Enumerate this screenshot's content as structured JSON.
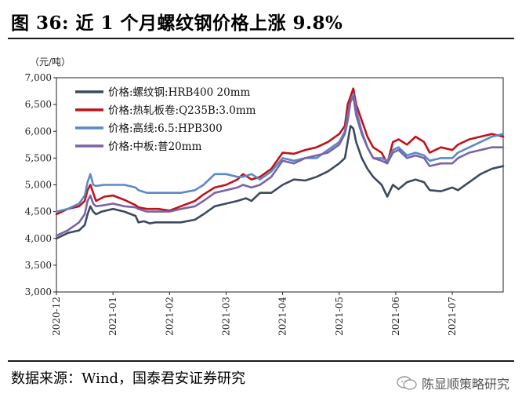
{
  "header": {
    "title": "图 36:  近 1 个月螺纹钢价格上涨 9.8%"
  },
  "footer": {
    "source": "数据来源：Wind，国泰君安证券研究",
    "watermark": "陈显顺策略研究"
  },
  "chart_data": {
    "type": "line",
    "title": "近 1 个月螺纹钢价格上涨 9.8%",
    "ylabel": "（元/吨）",
    "xlabel": "",
    "ylim": [
      3000,
      7000
    ],
    "yticks": [
      3000,
      3500,
      4000,
      4500,
      5000,
      5500,
      6000,
      6500,
      7000
    ],
    "ytick_labels": [
      "3,000",
      "3,500",
      "4,000",
      "4,500",
      "5,000",
      "5,500",
      "6,000",
      "6,500",
      "7,000"
    ],
    "x_range": [
      0,
      7.9
    ],
    "x_ticks": [
      0,
      1,
      2,
      3,
      4,
      5,
      6,
      7
    ],
    "x_tick_labels": [
      "2020-12",
      "2021-01",
      "2021-02",
      "2021-03",
      "2021-04",
      "2021-05",
      "2021-06",
      "2021-07"
    ],
    "legend_position": "top-left",
    "series": [
      {
        "name": "价格:螺纹钢:HRB400 20mm",
        "color": "#3d4a5e",
        "x": [
          0,
          0.2,
          0.4,
          0.5,
          0.55,
          0.6,
          0.65,
          0.7,
          0.8,
          1.0,
          1.2,
          1.4,
          1.45,
          1.55,
          1.65,
          1.75,
          1.9,
          2.2,
          2.45,
          2.6,
          2.8,
          3.0,
          3.2,
          3.35,
          3.45,
          3.6,
          3.8,
          4.0,
          4.2,
          4.4,
          4.6,
          4.8,
          5.0,
          5.1,
          5.15,
          5.2,
          5.25,
          5.3,
          5.4,
          5.5,
          5.6,
          5.75,
          5.85,
          5.95,
          6.05,
          6.2,
          6.35,
          6.5,
          6.6,
          6.8,
          7.0,
          7.1,
          7.3,
          7.5,
          7.7,
          7.9
        ],
        "values": [
          4000,
          4100,
          4150,
          4250,
          4450,
          4600,
          4500,
          4450,
          4500,
          4550,
          4500,
          4420,
          4300,
          4320,
          4280,
          4300,
          4300,
          4300,
          4350,
          4450,
          4600,
          4650,
          4700,
          4750,
          4700,
          4850,
          4850,
          5000,
          5100,
          5080,
          5150,
          5250,
          5400,
          5500,
          5800,
          6100,
          6050,
          5800,
          5500,
          5300,
          5150,
          5000,
          4780,
          5000,
          4920,
          5050,
          5100,
          5050,
          4900,
          4880,
          4950,
          4900,
          5050,
          5200,
          5300,
          5350
        ]
      },
      {
        "name": "价格:热轧板卷:Q235B:3.0mm",
        "color": "#c0121a",
        "x": [
          0,
          0.2,
          0.4,
          0.5,
          0.55,
          0.6,
          0.65,
          0.7,
          0.85,
          1.0,
          1.2,
          1.4,
          1.45,
          1.6,
          1.8,
          2.0,
          2.2,
          2.45,
          2.6,
          2.8,
          3.0,
          3.2,
          3.3,
          3.45,
          3.6,
          3.8,
          4.0,
          4.2,
          4.4,
          4.6,
          4.8,
          5.0,
          5.1,
          5.15,
          5.2,
          5.25,
          5.3,
          5.4,
          5.5,
          5.6,
          5.75,
          5.85,
          5.95,
          6.05,
          6.2,
          6.35,
          6.5,
          6.6,
          6.8,
          7.0,
          7.1,
          7.3,
          7.5,
          7.7,
          7.9
        ],
        "values": [
          4450,
          4550,
          4600,
          4700,
          4900,
          5000,
          4850,
          4700,
          4780,
          4800,
          4720,
          4620,
          4580,
          4550,
          4550,
          4520,
          4600,
          4700,
          4820,
          4950,
          5000,
          5100,
          5200,
          5100,
          5150,
          5300,
          5600,
          5580,
          5650,
          5700,
          5800,
          5950,
          6100,
          6500,
          6650,
          6800,
          6500,
          6200,
          5900,
          5700,
          5600,
          5400,
          5800,
          5850,
          5750,
          5900,
          5800,
          5600,
          5700,
          5650,
          5750,
          5850,
          5900,
          5950,
          5900
        ]
      },
      {
        "name": "价格:高线:6.5:HPB300",
        "color": "#5b89c4",
        "x": [
          0,
          0.2,
          0.4,
          0.5,
          0.55,
          0.6,
          0.65,
          0.7,
          0.85,
          1.0,
          1.2,
          1.4,
          1.45,
          1.6,
          1.8,
          2.0,
          2.2,
          2.45,
          2.6,
          2.8,
          3.0,
          3.2,
          3.3,
          3.45,
          3.6,
          3.8,
          4.0,
          4.2,
          4.4,
          4.6,
          4.8,
          5.0,
          5.1,
          5.15,
          5.2,
          5.25,
          5.3,
          5.4,
          5.5,
          5.6,
          5.75,
          5.85,
          5.95,
          6.05,
          6.2,
          6.35,
          6.5,
          6.6,
          6.8,
          7.0,
          7.1,
          7.3,
          7.5,
          7.7,
          7.9
        ],
        "values": [
          4500,
          4550,
          4650,
          4800,
          5050,
          5200,
          5000,
          4980,
          5000,
          5000,
          5000,
          4950,
          4900,
          4850,
          4850,
          4850,
          4850,
          4900,
          5000,
          5200,
          5200,
          5150,
          5150,
          5200,
          5100,
          5250,
          5500,
          5450,
          5500,
          5500,
          5650,
          5800,
          6000,
          6300,
          6550,
          6700,
          6400,
          6000,
          5700,
          5500,
          5500,
          5450,
          5650,
          5700,
          5550,
          5600,
          5550,
          5450,
          5500,
          5500,
          5600,
          5700,
          5800,
          5900,
          5950
        ]
      },
      {
        "name": "价格:中板:普20mm",
        "color": "#7b63a8",
        "x": [
          0,
          0.2,
          0.4,
          0.5,
          0.55,
          0.6,
          0.65,
          0.7,
          0.85,
          1.0,
          1.2,
          1.4,
          1.45,
          1.6,
          1.8,
          2.0,
          2.2,
          2.45,
          2.6,
          2.8,
          3.0,
          3.2,
          3.3,
          3.45,
          3.6,
          3.8,
          4.0,
          4.2,
          4.4,
          4.6,
          4.8,
          5.0,
          5.1,
          5.15,
          5.2,
          5.25,
          5.3,
          5.4,
          5.5,
          5.6,
          5.75,
          5.85,
          5.95,
          6.05,
          6.2,
          6.35,
          6.5,
          6.6,
          6.8,
          7.0,
          7.1,
          7.3,
          7.5,
          7.7,
          7.9
        ],
        "values": [
          4050,
          4150,
          4300,
          4450,
          4700,
          4800,
          4650,
          4600,
          4620,
          4650,
          4600,
          4580,
          4550,
          4500,
          4500,
          4500,
          4550,
          4600,
          4700,
          4850,
          4900,
          4950,
          5000,
          4950,
          5000,
          5150,
          5450,
          5400,
          5500,
          5550,
          5600,
          5750,
          5950,
          6200,
          6550,
          6650,
          6300,
          5950,
          5700,
          5500,
          5450,
          5400,
          5600,
          5650,
          5500,
          5550,
          5500,
          5350,
          5400,
          5400,
          5500,
          5600,
          5650,
          5700,
          5700
        ]
      }
    ]
  }
}
